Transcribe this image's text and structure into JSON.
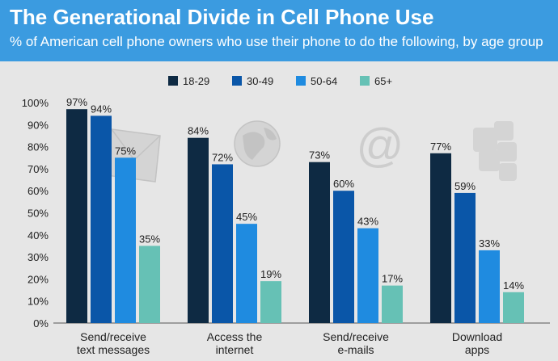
{
  "header": {
    "title": "The Generational Divide in Cell Phone Use",
    "subtitle": "% of American cell phone owners who use their phone to do the following, by age group"
  },
  "colors": {
    "header_bg": "#3b9be0",
    "series": [
      "#0e2a43",
      "#0a56a8",
      "#1f8be0",
      "#66c1b5"
    ]
  },
  "icons": [
    "envelope-icon",
    "globe-icon",
    "at-sign-icon",
    "apps-icon"
  ],
  "chart_data": {
    "type": "bar",
    "title": "The Generational Divide in Cell Phone Use",
    "subtitle": "% of American cell phone owners who use their phone to do the following, by age group",
    "categories": [
      [
        "Send/receive",
        "text messages"
      ],
      [
        "Access the",
        "internet"
      ],
      [
        "Send/receive",
        "e-mails"
      ],
      [
        "Download",
        "apps"
      ]
    ],
    "series": [
      {
        "name": "18-29",
        "values": [
          97,
          84,
          73,
          77
        ]
      },
      {
        "name": "30-49",
        "values": [
          94,
          72,
          60,
          59
        ]
      },
      {
        "name": "50-64",
        "values": [
          75,
          45,
          43,
          33
        ]
      },
      {
        "name": "65+",
        "values": [
          35,
          19,
          17,
          14
        ]
      }
    ],
    "ylim": [
      0,
      100
    ],
    "yticks": [
      "0%",
      "10%",
      "20%",
      "30%",
      "40%",
      "50%",
      "60%",
      "70%",
      "80%",
      "90%",
      "100%"
    ],
    "value_suffix": "%",
    "legend_position": "top-center",
    "grid": false
  }
}
